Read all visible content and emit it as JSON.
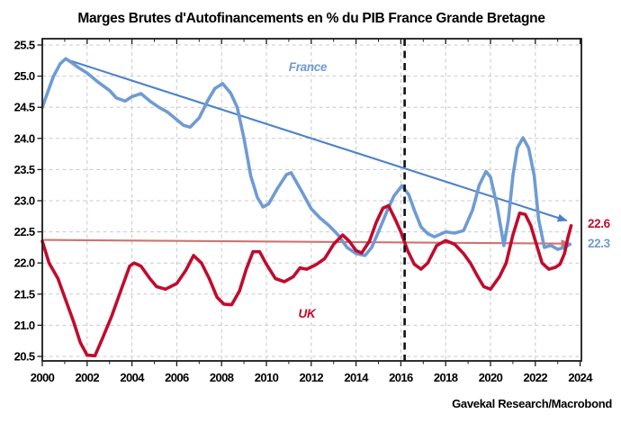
{
  "title": "Marges Brutes d'Autofinancements en % du PIB France Grande Bretagne",
  "source": "Gavekal Research/Macrobond",
  "series_labels": {
    "france": "France",
    "uk": "UK"
  },
  "end_labels": {
    "uk": "22.6",
    "france": "22.3"
  },
  "colors": {
    "france": "#6f9bd2",
    "france_trend": "#4d82ca",
    "uk": "#c00c2d",
    "uk_trend": "#d07272",
    "grid": "#c9c9c9",
    "divider": "#111111"
  },
  "chart_data": {
    "type": "line",
    "title": "Marges Brutes d'Autofinancements en % du PIB France Grande Bretagne",
    "xlabel": "",
    "ylabel": "",
    "grid": true,
    "xlim": [
      2000,
      2024
    ],
    "ylim": [
      20.5,
      25.5
    ],
    "x_tick_values": [
      2000,
      2002,
      2004,
      2006,
      2008,
      2010,
      2012,
      2014,
      2016,
      2018,
      2020,
      2022,
      2024
    ],
    "x_tick_labels": [
      "2000",
      "2002",
      "2004",
      "2006",
      "2008",
      "2010",
      "2012",
      "2014",
      "2016",
      "2018",
      "2020",
      "2022",
      "2024"
    ],
    "x_minor_tick_values": [
      2001,
      2003,
      2005,
      2007,
      2009,
      2011,
      2013,
      2015,
      2017,
      2019,
      2021,
      2023
    ],
    "y_tick_values": [
      20.5,
      21.0,
      21.5,
      22.0,
      22.5,
      23.0,
      23.5,
      24.0,
      24.5,
      25.0,
      25.5
    ],
    "y_tick_labels": [
      "20.5",
      "21.0",
      "21.5",
      "22.0",
      "22.5",
      "23.0",
      "23.5",
      "24.0",
      "24.5",
      "25.0",
      "25.5"
    ],
    "dashed_vline_x": 2016.17,
    "legend_position": "in-plot-labels",
    "series": [
      {
        "name": "France",
        "color": "#6f9bd2",
        "end_value": 22.3,
        "points": [
          [
            2000.0,
            24.5
          ],
          [
            2000.25,
            24.75
          ],
          [
            2000.5,
            25.0
          ],
          [
            2000.8,
            25.2
          ],
          [
            2001.05,
            25.28
          ],
          [
            2001.3,
            25.22
          ],
          [
            2001.6,
            25.14
          ],
          [
            2002.0,
            25.05
          ],
          [
            2002.5,
            24.9
          ],
          [
            2003.0,
            24.77
          ],
          [
            2003.3,
            24.65
          ],
          [
            2003.7,
            24.6
          ],
          [
            2004.0,
            24.67
          ],
          [
            2004.4,
            24.72
          ],
          [
            2004.8,
            24.6
          ],
          [
            2005.2,
            24.5
          ],
          [
            2005.6,
            24.42
          ],
          [
            2006.0,
            24.3
          ],
          [
            2006.3,
            24.21
          ],
          [
            2006.6,
            24.18
          ],
          [
            2007.0,
            24.33
          ],
          [
            2007.4,
            24.62
          ],
          [
            2007.7,
            24.8
          ],
          [
            2008.05,
            24.88
          ],
          [
            2008.4,
            24.73
          ],
          [
            2008.7,
            24.5
          ],
          [
            2009.0,
            24.0
          ],
          [
            2009.3,
            23.4
          ],
          [
            2009.6,
            23.05
          ],
          [
            2009.85,
            22.9
          ],
          [
            2010.1,
            22.95
          ],
          [
            2010.5,
            23.2
          ],
          [
            2010.9,
            23.42
          ],
          [
            2011.1,
            23.45
          ],
          [
            2011.5,
            23.2
          ],
          [
            2012.0,
            22.87
          ],
          [
            2012.4,
            22.72
          ],
          [
            2012.8,
            22.6
          ],
          [
            2013.2,
            22.45
          ],
          [
            2013.6,
            22.25
          ],
          [
            2014.0,
            22.15
          ],
          [
            2014.4,
            22.12
          ],
          [
            2014.7,
            22.25
          ],
          [
            2015.0,
            22.5
          ],
          [
            2015.4,
            22.85
          ],
          [
            2015.7,
            23.08
          ],
          [
            2016.05,
            23.24
          ],
          [
            2016.35,
            23.1
          ],
          [
            2016.6,
            22.85
          ],
          [
            2016.9,
            22.58
          ],
          [
            2017.2,
            22.47
          ],
          [
            2017.5,
            22.42
          ],
          [
            2018.0,
            22.5
          ],
          [
            2018.4,
            22.48
          ],
          [
            2018.8,
            22.52
          ],
          [
            2019.2,
            22.85
          ],
          [
            2019.5,
            23.25
          ],
          [
            2019.8,
            23.47
          ],
          [
            2020.0,
            23.38
          ],
          [
            2020.3,
            22.9
          ],
          [
            2020.6,
            22.28
          ],
          [
            2020.8,
            22.7
          ],
          [
            2021.0,
            23.4
          ],
          [
            2021.2,
            23.85
          ],
          [
            2021.45,
            24.01
          ],
          [
            2021.7,
            23.85
          ],
          [
            2021.95,
            23.4
          ],
          [
            2022.15,
            22.7
          ],
          [
            2022.4,
            22.25
          ],
          [
            2022.7,
            22.28
          ],
          [
            2023.0,
            22.22
          ],
          [
            2023.3,
            22.25
          ],
          [
            2023.55,
            22.3
          ]
        ]
      },
      {
        "name": "UK",
        "color": "#c00c2d",
        "end_value": 22.6,
        "points": [
          [
            2000.0,
            22.35
          ],
          [
            2000.3,
            22.0
          ],
          [
            2000.7,
            21.75
          ],
          [
            2001.0,
            21.45
          ],
          [
            2001.4,
            21.05
          ],
          [
            2001.7,
            20.72
          ],
          [
            2002.0,
            20.52
          ],
          [
            2002.35,
            20.51
          ],
          [
            2002.7,
            20.8
          ],
          [
            2003.1,
            21.15
          ],
          [
            2003.5,
            21.55
          ],
          [
            2003.9,
            21.95
          ],
          [
            2004.1,
            22.0
          ],
          [
            2004.4,
            21.95
          ],
          [
            2004.8,
            21.75
          ],
          [
            2005.1,
            21.62
          ],
          [
            2005.5,
            21.58
          ],
          [
            2006.0,
            21.67
          ],
          [
            2006.4,
            21.88
          ],
          [
            2006.75,
            22.12
          ],
          [
            2007.1,
            22.0
          ],
          [
            2007.45,
            21.75
          ],
          [
            2007.8,
            21.45
          ],
          [
            2008.1,
            21.34
          ],
          [
            2008.45,
            21.33
          ],
          [
            2008.8,
            21.55
          ],
          [
            2009.1,
            21.9
          ],
          [
            2009.4,
            22.18
          ],
          [
            2009.7,
            22.18
          ],
          [
            2010.0,
            21.98
          ],
          [
            2010.4,
            21.75
          ],
          [
            2010.8,
            21.7
          ],
          [
            2011.2,
            21.78
          ],
          [
            2011.5,
            21.92
          ],
          [
            2011.8,
            21.9
          ],
          [
            2012.2,
            21.97
          ],
          [
            2012.6,
            22.07
          ],
          [
            2013.0,
            22.3
          ],
          [
            2013.4,
            22.45
          ],
          [
            2013.7,
            22.35
          ],
          [
            2014.0,
            22.2
          ],
          [
            2014.25,
            22.16
          ],
          [
            2014.6,
            22.35
          ],
          [
            2014.9,
            22.65
          ],
          [
            2015.2,
            22.88
          ],
          [
            2015.45,
            22.92
          ],
          [
            2015.75,
            22.7
          ],
          [
            2016.0,
            22.5
          ],
          [
            2016.3,
            22.2
          ],
          [
            2016.6,
            21.98
          ],
          [
            2016.9,
            21.9
          ],
          [
            2017.2,
            22.0
          ],
          [
            2017.6,
            22.28
          ],
          [
            2018.0,
            22.36
          ],
          [
            2018.4,
            22.3
          ],
          [
            2018.8,
            22.15
          ],
          [
            2019.1,
            22.0
          ],
          [
            2019.4,
            21.8
          ],
          [
            2019.7,
            21.62
          ],
          [
            2020.0,
            21.58
          ],
          [
            2020.4,
            21.78
          ],
          [
            2020.7,
            22.0
          ],
          [
            2021.0,
            22.45
          ],
          [
            2021.3,
            22.8
          ],
          [
            2021.55,
            22.78
          ],
          [
            2021.8,
            22.6
          ],
          [
            2022.05,
            22.3
          ],
          [
            2022.3,
            22.0
          ],
          [
            2022.6,
            21.9
          ],
          [
            2022.9,
            21.93
          ],
          [
            2023.1,
            21.98
          ],
          [
            2023.3,
            22.15
          ],
          [
            2023.45,
            22.4
          ],
          [
            2023.6,
            22.6
          ]
        ]
      }
    ],
    "trend_lines": [
      {
        "name": "france-trend",
        "x1": 2001.05,
        "y1": 25.27,
        "x2": 2023.4,
        "y2": 22.68,
        "color": "#4d82ca",
        "arrow": true
      },
      {
        "name": "uk-trend",
        "x1": 2000.05,
        "y1": 22.37,
        "x2": 2023.55,
        "y2": 22.31,
        "color": "#d07272",
        "arrow": true
      }
    ],
    "annotations": [
      {
        "text": "France",
        "x": 2011.8,
        "y": 25.16,
        "color": "#6f9bd2"
      },
      {
        "text": "UK",
        "x": 2011.8,
        "y": 21.2,
        "color": "#c00c2d"
      }
    ]
  }
}
